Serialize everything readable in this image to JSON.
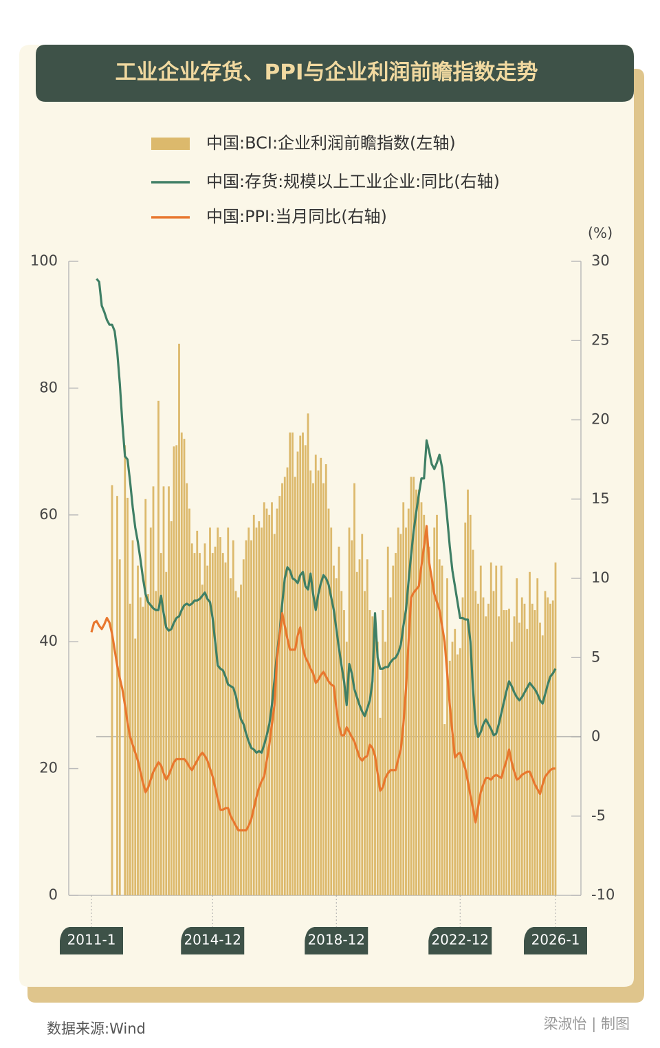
{
  "chart_data": {
    "type": "combo",
    "title": "工业企业存货、PPI与企业利润前瞻指数走势",
    "y2label": "(%)",
    "source": "数据来源:Wind",
    "credit": "梁淑怡 | 制图",
    "categories": [
      "2011-1",
      null,
      null,
      null,
      null,
      null,
      null,
      null,
      null,
      null,
      null,
      null,
      null,
      null,
      null,
      null,
      null,
      null,
      null,
      null,
      null,
      null,
      null,
      null,
      null,
      null,
      null,
      null,
      null,
      null,
      null,
      null,
      null,
      null,
      null,
      null,
      null,
      null,
      null,
      null,
      null,
      null,
      null,
      null,
      null,
      null,
      null,
      "2014-12",
      null,
      null,
      null,
      null,
      null,
      null,
      null,
      null,
      null,
      null,
      null,
      null,
      null,
      null,
      null,
      null,
      null,
      null,
      null,
      null,
      null,
      null,
      null,
      null,
      null,
      null,
      null,
      null,
      null,
      null,
      null,
      null,
      null,
      null,
      null,
      null,
      null,
      null,
      null,
      null,
      null,
      null,
      null,
      null,
      null,
      null,
      null,
      "2018-12",
      null,
      null,
      null,
      null,
      null,
      null,
      null,
      null,
      null,
      null,
      null,
      null,
      null,
      null,
      null,
      null,
      null,
      null,
      null,
      null,
      null,
      null,
      null,
      null,
      null,
      null,
      null,
      null,
      null,
      null,
      null,
      null,
      null,
      null,
      null,
      null,
      null,
      null,
      null,
      null,
      null,
      null,
      null,
      null,
      null,
      null,
      null,
      "2022-12",
      null,
      null,
      null,
      null,
      null,
      null,
      null,
      null,
      null,
      null,
      null,
      null,
      null,
      null,
      null,
      null,
      null,
      null,
      null,
      null,
      null,
      null,
      null,
      null,
      null,
      null,
      null,
      null,
      null,
      null,
      null,
      null,
      null,
      null,
      null,
      null,
      "2026-1"
    ],
    "series": [
      {
        "name": "中国:BCI:企业利润前瞻指数(左轴)",
        "type": "bar",
        "color": "#dcb96c",
        "values": [
          null,
          null,
          null,
          null,
          null,
          null,
          null,
          null,
          64.7,
          null,
          63,
          53,
          null,
          71,
          62.7,
          46,
          56,
          40.5,
          52,
          47,
          45.5,
          62.5,
          47.5,
          58,
          64.5,
          48,
          78,
          54,
          64.5,
          51,
          64.5,
          59,
          70.8,
          71,
          87,
          73,
          72,
          65,
          61,
          55.5,
          54,
          57.5,
          54,
          49,
          55.5,
          52,
          58,
          54,
          55,
          58,
          56.5,
          54,
          52.5,
          58,
          50,
          56,
          48,
          47,
          49,
          53,
          56,
          58,
          56,
          60,
          58,
          59,
          58,
          62,
          61,
          60,
          62,
          57,
          61,
          63,
          65,
          66,
          67.5,
          73,
          73,
          66,
          70,
          72.5,
          73,
          71,
          76,
          67,
          65,
          69.5,
          67,
          69,
          65,
          68,
          61,
          58,
          52,
          50,
          55,
          48,
          45,
          40,
          58,
          56,
          65,
          51,
          53,
          57,
          48,
          53,
          45,
          44,
          42,
          40,
          28,
          45,
          40,
          55,
          47,
          52,
          54,
          58,
          57,
          62,
          58,
          61,
          66,
          66,
          64,
          64,
          62,
          60,
          57,
          55,
          50,
          58,
          60,
          53,
          52,
          27,
          50,
          37,
          40,
          42,
          38,
          39,
          47,
          58.8,
          64,
          60,
          54.5,
          48,
          46,
          52,
          47,
          44,
          46,
          52.5,
          48,
          52,
          44,
          52,
          45,
          45,
          45.2,
          40,
          44,
          50,
          43,
          47,
          46,
          42,
          51,
          46,
          45,
          50,
          43,
          41,
          48,
          47,
          46,
          46.5,
          52.5
        ]
      },
      {
        "name": "中国:存货:规模以上工业企业:同比(右轴)",
        "type": "line",
        "axis": "y2",
        "color": "#3f7f65",
        "values": [
          null,
          null,
          28.9,
          28.7,
          27.2,
          26.8,
          26.3,
          26.0,
          26.0,
          25.6,
          24.3,
          22.3,
          19.8,
          17.7,
          17.5,
          16.1,
          14.5,
          13.2,
          12.3,
          11.2,
          10.0,
          9.0,
          8.5,
          8.3,
          8.1,
          8.0,
          8.0,
          8.9,
          7.8,
          6.9,
          6.7,
          6.8,
          7.2,
          7.5,
          7.6,
          8.0,
          8.3,
          8.4,
          8.3,
          8.4,
          8.6,
          8.6,
          8.7,
          8.9,
          9.1,
          8.7,
          8.5,
          7.5,
          6.0,
          4.5,
          4.3,
          4.2,
          3.8,
          3.3,
          3.2,
          3.1,
          2.6,
          1.8,
          1.1,
          0.8,
          0.2,
          -0.3,
          -0.7,
          -0.8,
          -1.0,
          -0.9,
          -1.0,
          -0.5,
          0.1,
          0.8,
          2.0,
          3.6,
          5.3,
          6.6,
          8.4,
          10.0,
          10.7,
          10.5,
          10.0,
          9.9,
          9.7,
          10.2,
          10.4,
          9.5,
          9.3,
          10.3,
          9.0,
          8.0,
          9.0,
          9.7,
          10.2,
          10.0,
          9.6,
          8.8,
          8.0,
          6.8,
          5.6,
          4.5,
          3.5,
          2.0,
          4.6,
          4.0,
          3.0,
          2.5,
          2.0,
          1.6,
          1.3,
          1.8,
          2.3,
          3.5,
          7.8,
          5.0,
          4.3,
          4.3,
          4.4,
          4.4,
          4.7,
          4.9,
          5.0,
          5.3,
          5.8,
          7.0,
          8.0,
          9.8,
          11.5,
          13.0,
          14.2,
          15.3,
          16.3,
          16.3,
          18.7,
          18.0,
          17.2,
          16.9,
          17.3,
          17.8,
          17.0,
          15.5,
          13.8,
          12.0,
          10.5,
          9.5,
          8.5,
          7.5,
          7.5,
          7.4,
          7.4,
          6.0,
          3.0,
          0.8,
          0.0,
          0.3,
          0.8,
          1.1,
          0.8,
          0.5,
          0.1,
          0.2,
          0.8,
          1.5,
          2.2,
          2.9,
          3.5,
          3.2,
          2.8,
          2.5,
          2.3,
          2.5,
          2.8,
          3.1,
          3.4,
          3.2,
          3.0,
          2.7,
          2.3,
          2.1,
          2.7,
          3.3,
          3.8,
          4.0,
          4.3
        ]
      },
      {
        "name": "中国:PPI:当月同比(右轴)",
        "type": "line",
        "axis": "y2",
        "color": "#e8772e",
        "values": [
          6.6,
          7.2,
          7.3,
          7.0,
          6.8,
          7.1,
          7.5,
          7.2,
          6.5,
          5.5,
          4.5,
          3.7,
          3.0,
          2.0,
          0.9,
          0.0,
          -0.5,
          -1.0,
          -1.5,
          -2.2,
          -2.9,
          -3.5,
          -3.2,
          -2.7,
          -2.2,
          -1.9,
          -1.6,
          -1.8,
          -2.3,
          -2.7,
          -2.4,
          -2.0,
          -1.6,
          -1.4,
          -1.4,
          -1.4,
          -1.4,
          -1.6,
          -1.9,
          -2.1,
          -1.8,
          -1.5,
          -1.2,
          -1.0,
          -1.2,
          -1.5,
          -2.0,
          -2.5,
          -3.2,
          -3.9,
          -4.6,
          -4.6,
          -4.5,
          -4.5,
          -5.0,
          -5.3,
          -5.6,
          -5.9,
          -5.9,
          -5.9,
          -5.9,
          -5.6,
          -5.2,
          -4.5,
          -3.8,
          -3.2,
          -2.8,
          -2.5,
          -1.5,
          -0.5,
          0.8,
          2.0,
          5.0,
          6.4,
          7.8,
          7.0,
          6.2,
          5.5,
          5.5,
          5.5,
          6.4,
          6.9,
          5.6,
          5.0,
          4.7,
          4.3,
          4.0,
          3.4,
          3.6,
          3.9,
          4.1,
          3.8,
          3.5,
          3.3,
          3.2,
          1.8,
          0.7,
          0.1,
          0.1,
          0.6,
          0.3,
          0.0,
          -0.3,
          -0.8,
          -1.3,
          -1.5,
          -1.3,
          -1.2,
          -0.5,
          -0.7,
          -1.2,
          -2.3,
          -3.4,
          -3.2,
          -2.6,
          -2.3,
          -2.1,
          -2.1,
          -2.1,
          -1.4,
          -0.8,
          0.8,
          3.0,
          6.0,
          8.8,
          9.1,
          9.3,
          9.5,
          10.8,
          12.0,
          13.3,
          11.0,
          10.0,
          9.0,
          8.5,
          8.0,
          7.0,
          6.0,
          4.0,
          2.0,
          0.3,
          -1.3,
          -1.1,
          -1.0,
          -1.5,
          -2.0,
          -2.8,
          -3.7,
          -4.5,
          -5.4,
          -4.4,
          -3.5,
          -3.0,
          -2.6,
          -2.6,
          -2.7,
          -2.5,
          -2.4,
          -2.5,
          -2.6,
          -2.0,
          -1.5,
          -0.8,
          -1.6,
          -2.2,
          -2.7,
          -2.6,
          -2.4,
          -2.3,
          -2.2,
          -2.2,
          -2.6,
          -3.0,
          -3.3,
          -3.6,
          -3.0,
          -2.5,
          -2.3,
          -2.1,
          -2.0,
          -2.0
        ]
      }
    ],
    "ylim": [
      0,
      100
    ],
    "yticks": [
      0,
      20,
      40,
      60,
      80,
      100
    ],
    "y2lim": [
      -10,
      30
    ],
    "y2ticks": [
      -10,
      -5,
      0,
      5,
      10,
      15,
      20,
      25,
      30
    ]
  }
}
